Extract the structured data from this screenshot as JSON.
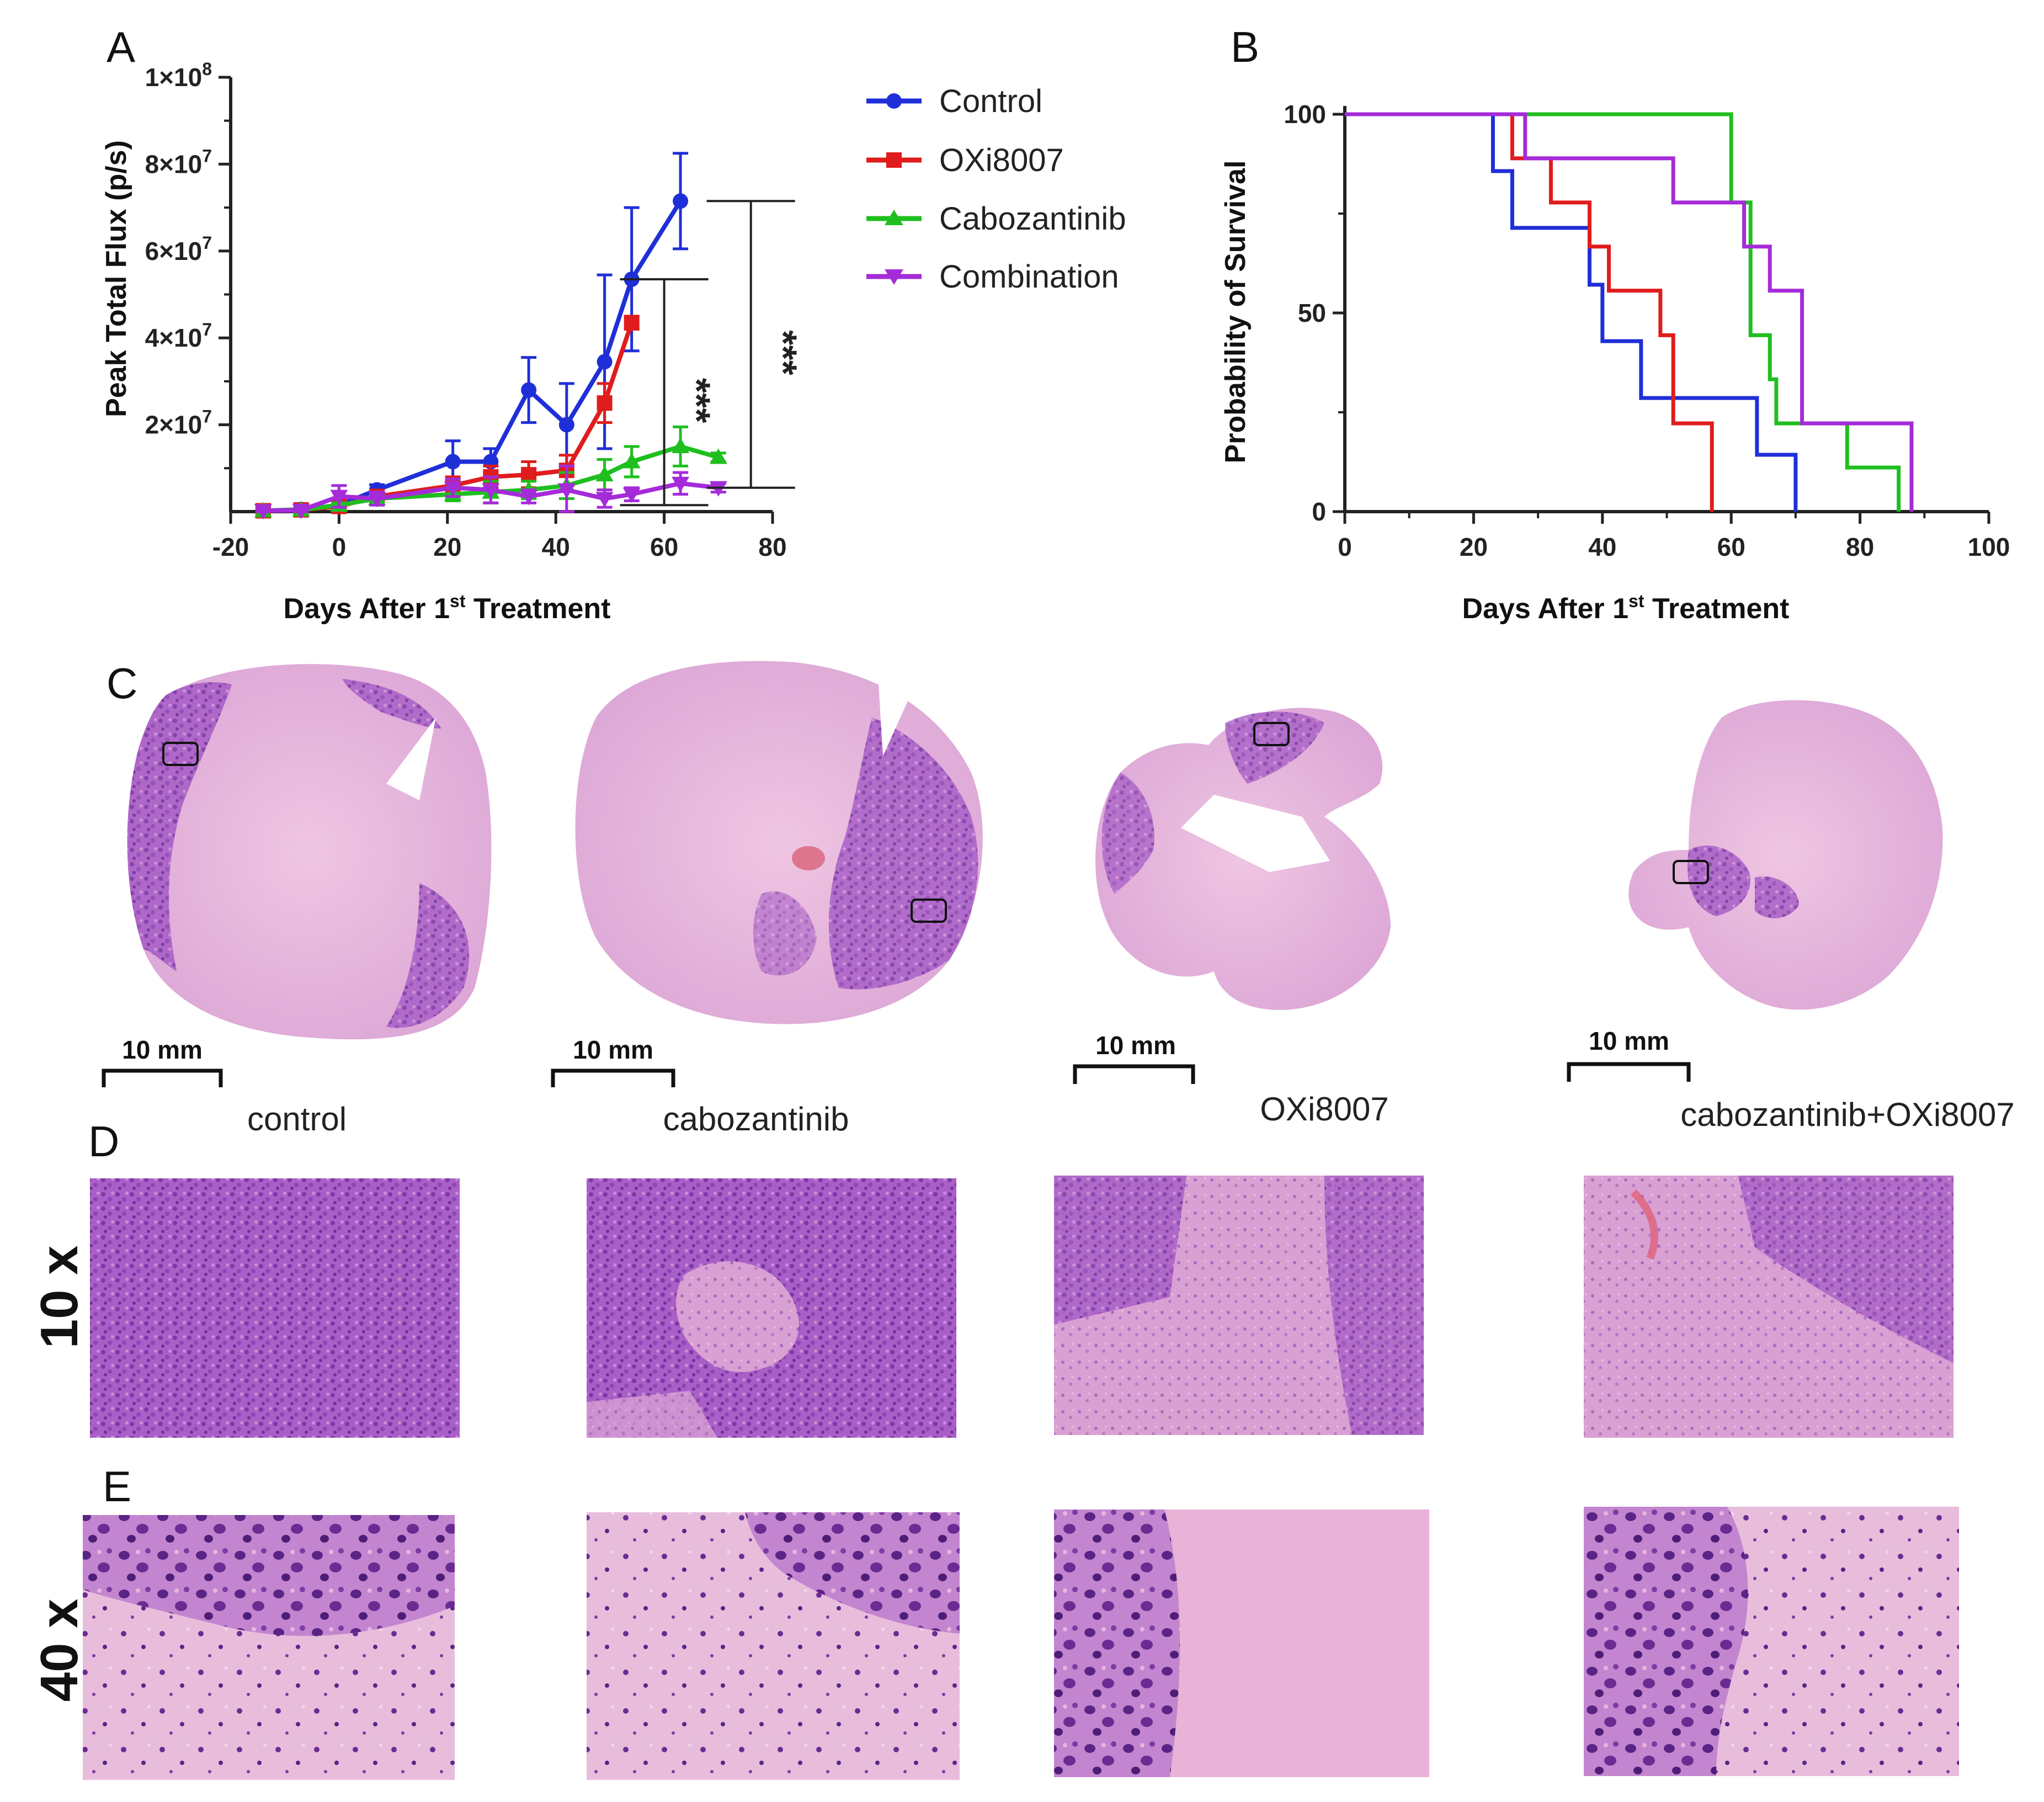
{
  "panels": {
    "a": "A",
    "b": "B",
    "c": "C",
    "d": "D",
    "e": "E"
  },
  "colors": {
    "control": "#1f2fd8",
    "oxi": "#e01c1c",
    "cabo": "#1fbf1f",
    "combo": "#a52bd9",
    "tissue_pale": "#eab8de",
    "tissue_dark": "#9a5ac4"
  },
  "chart_data": [
    {
      "id": "A",
      "type": "line",
      "title": "",
      "xlabel_prefix": "Days After 1",
      "xlabel_sup": "st",
      "xlabel_suffix": " Treatment",
      "ylabel": "Peak Total Flux  (p/s)",
      "xlim": [
        -20,
        80
      ],
      "ylim": [
        0,
        100000000
      ],
      "xticks": [
        -20,
        0,
        20,
        40,
        60,
        80
      ],
      "xtick_labels": [
        "-20",
        "0",
        "20",
        "40",
        "60",
        "80"
      ],
      "yticks": [
        {
          "value": 100000000,
          "mantissa": "1×10",
          "exp": "8"
        },
        {
          "value": 80000000,
          "mantissa": "8×10",
          "exp": "7"
        },
        {
          "value": 60000000,
          "mantissa": "6×10",
          "exp": "7"
        },
        {
          "value": 40000000,
          "mantissa": "4×10",
          "exp": "7"
        },
        {
          "value": 20000000,
          "mantissa": "2×10",
          "exp": "7"
        }
      ],
      "series": [
        {
          "name": "Control",
          "key": "control",
          "marker": "circle",
          "x": [
            -14,
            -7,
            0,
            7,
            21,
            28,
            35,
            42,
            49,
            54,
            63
          ],
          "y": [
            200000,
            500000,
            1500000,
            5000000,
            11500000,
            11500000,
            28000000,
            20000000,
            34500000,
            53500000,
            71500000
          ],
          "err": [
            400000,
            500000,
            800000,
            1200000,
            4800000,
            3000000,
            7500000,
            9500000,
            20000000,
            16500000,
            11000000
          ]
        },
        {
          "name": "OXi8007",
          "key": "oxi",
          "marker": "square",
          "x": [
            -14,
            -7,
            0,
            7,
            21,
            28,
            35,
            42,
            49,
            54
          ],
          "y": [
            200000,
            400000,
            1200000,
            3500000,
            6000000,
            8000000,
            8500000,
            9500000,
            25000000,
            43500000
          ],
          "err": [
            300000,
            400000,
            600000,
            1000000,
            2000000,
            2500000,
            3000000,
            3500000,
            4500000,
            1500000
          ]
        },
        {
          "name": "Cabozantinib",
          "key": "cabo",
          "marker": "triangle",
          "x": [
            -14,
            -7,
            0,
            7,
            21,
            28,
            35,
            42,
            49,
            54,
            63,
            70
          ],
          "y": [
            200000,
            400000,
            1500000,
            3000000,
            4000000,
            4500000,
            5000000,
            6000000,
            8500000,
            11500000,
            15000000,
            12500000
          ],
          "err": [
            300000,
            400000,
            500000,
            1000000,
            1500000,
            2500000,
            2000000,
            3000000,
            3500000,
            3500000,
            4500000,
            1000000
          ]
        },
        {
          "name": "Combination",
          "key": "combo",
          "marker": "triangle-down",
          "x": [
            -14,
            -7,
            0,
            7,
            21,
            28,
            35,
            42,
            49,
            54,
            63,
            70
          ],
          "y": [
            200000,
            300000,
            3500000,
            3000000,
            5500000,
            5000000,
            3500000,
            5000000,
            3000000,
            4000000,
            6500000,
            5500000
          ],
          "err": [
            300000,
            300000,
            2500000,
            1500000,
            2000000,
            3000000,
            1500000,
            5500000,
            2000000,
            1500000,
            2500000,
            1000000
          ]
        }
      ],
      "significance": [
        {
          "label": "***",
          "x_bracket": 60,
          "y_from": 1500000,
          "y_to": 53500000
        },
        {
          "label": "***",
          "x_bracket": 76,
          "y_from": 5500000,
          "y_to": 71500000
        }
      ]
    },
    {
      "id": "B",
      "type": "line",
      "subtype": "kaplan-meier",
      "xlabel_prefix": "Days After 1",
      "xlabel_sup": "st",
      "xlabel_suffix": " Treatment",
      "ylabel": "Probability of Survival",
      "xlim": [
        0,
        100
      ],
      "ylim": [
        0,
        100
      ],
      "xticks": [
        0,
        20,
        40,
        60,
        80,
        100
      ],
      "xtick_labels": [
        "0",
        "20",
        "40",
        "60",
        "80",
        "100"
      ],
      "yticks": [
        0,
        50,
        100
      ],
      "ytick_labels": [
        "0",
        "50",
        "100"
      ],
      "series": [
        {
          "name": "Control",
          "key": "control",
          "x": [
            0,
            23,
            26,
            38,
            40,
            46,
            57,
            64,
            70
          ],
          "y": [
            100,
            85.7,
            71.4,
            57.1,
            42.9,
            28.6,
            28.6,
            14.3,
            0
          ]
        },
        {
          "name": "OXi8007",
          "key": "oxi",
          "x": [
            0,
            26,
            32,
            38,
            41,
            49,
            51,
            57
          ],
          "y": [
            100,
            88.9,
            77.8,
            66.7,
            55.6,
            44.4,
            22.2,
            0
          ]
        },
        {
          "name": "Cabozantinib",
          "key": "cabo",
          "x": [
            0,
            60,
            63,
            66,
            67,
            78,
            86
          ],
          "y": [
            100,
            77.8,
            44.4,
            33.3,
            22.2,
            11.1,
            0
          ]
        },
        {
          "name": "Combination",
          "key": "combo",
          "x": [
            0,
            28,
            51,
            62,
            66,
            71,
            78,
            88
          ],
          "y": [
            100,
            88.9,
            77.8,
            66.7,
            55.6,
            22.2,
            22.2,
            0
          ]
        }
      ]
    }
  ],
  "panelC": {
    "groups": [
      "control",
      "cabozantinib",
      "OXi8007",
      "cabozantinib+OXi8007"
    ],
    "scale_label": "10 mm"
  },
  "rows": {
    "d_label": "10 x",
    "e_label": "40 x"
  }
}
